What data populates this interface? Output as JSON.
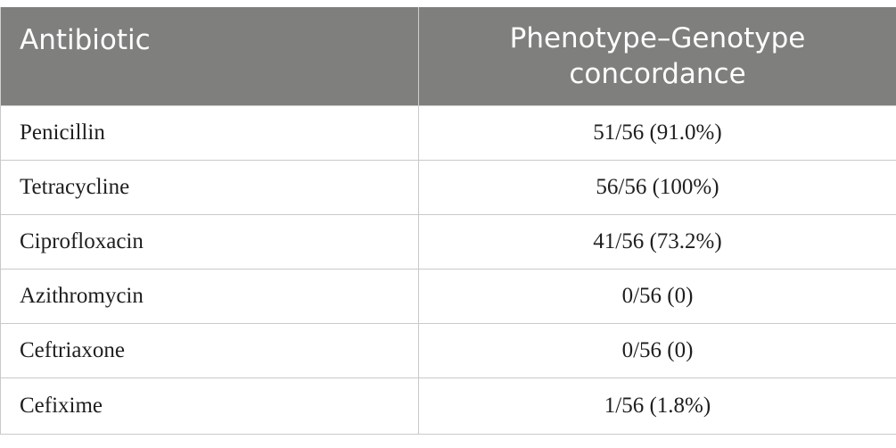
{
  "table": {
    "headers": {
      "col1": "Antibiotic",
      "col2": "Phenotype–Genotype\nconcordance"
    },
    "rows": [
      {
        "antibiotic": "Penicillin",
        "concordance": "51/56 (91.0%)"
      },
      {
        "antibiotic": "Tetracycline",
        "concordance": "56/56 (100%)"
      },
      {
        "antibiotic": "Ciprofloxacin",
        "concordance": "41/56 (73.2%)"
      },
      {
        "antibiotic": "Azithromycin",
        "concordance": "0/56 (0)"
      },
      {
        "antibiotic": "Ceftriaxone",
        "concordance": "0/56 (0)"
      },
      {
        "antibiotic": "Cefixime",
        "concordance": "1/56 (1.8%)"
      }
    ]
  },
  "colors": {
    "header_bg": "#7f7f7d",
    "header_text": "#ffffff",
    "body_text": "#1e1e1e",
    "grid": "#c9c9c9"
  }
}
